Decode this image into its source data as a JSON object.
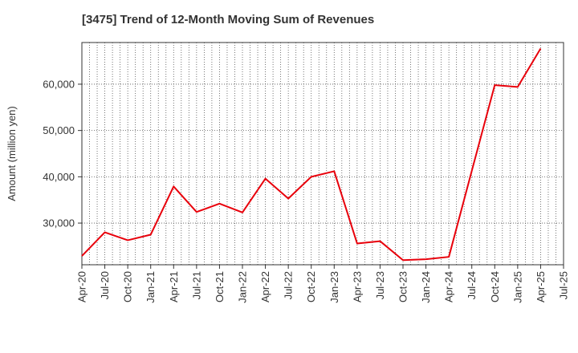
{
  "chart_data": {
    "type": "line",
    "title": "[3475]  Trend of 12-Month Moving Sum of Revenues",
    "xlabel": "",
    "ylabel": "Amount (million yen)",
    "x_tick_labels": [
      "Apr-20",
      "Jul-20",
      "Oct-20",
      "Jan-21",
      "Apr-21",
      "Jul-21",
      "Oct-21",
      "Jan-22",
      "Apr-22",
      "Jul-22",
      "Oct-22",
      "Jan-23",
      "Apr-23",
      "Jul-23",
      "Oct-23",
      "Jan-24",
      "Apr-24",
      "Jul-24",
      "Oct-24",
      "Jan-25",
      "Apr-25",
      "Jul-25"
    ],
    "y_ticks": [
      30000,
      40000,
      50000,
      60000
    ],
    "y_tick_labels": [
      "30,000",
      "40,000",
      "50,000",
      "60,000"
    ],
    "ylim": [
      21000,
      69000
    ],
    "grid": true,
    "colors": {
      "line": "#e8000b",
      "grid": "#555555",
      "frame": "#333333"
    },
    "series": [
      {
        "values": [
          22900,
          28000,
          26300,
          27500,
          37900,
          32400,
          34200,
          32300,
          39600,
          35300,
          40000,
          41200,
          25600,
          26100,
          22000,
          22200,
          22700,
          41300,
          59800,
          59400,
          67700
        ]
      }
    ]
  }
}
